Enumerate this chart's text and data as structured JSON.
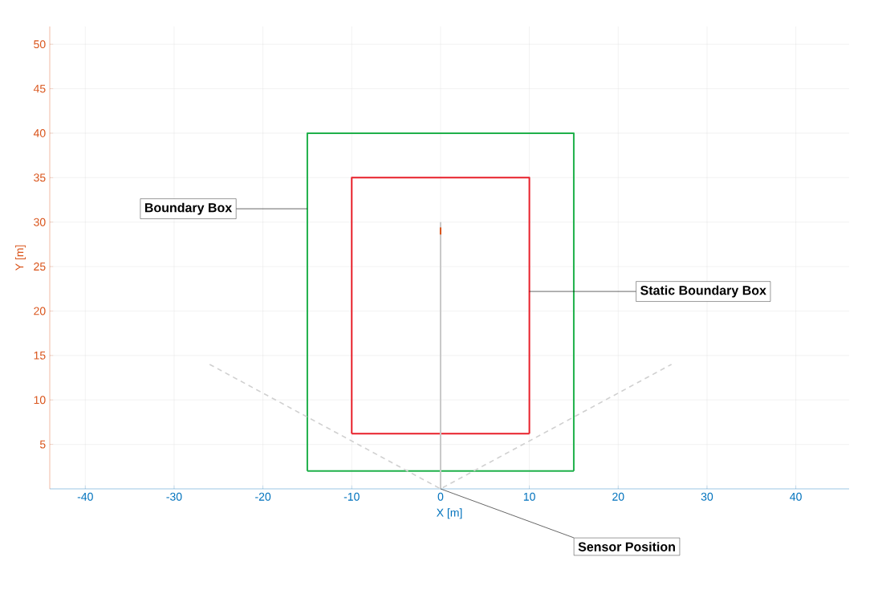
{
  "chart_data": {
    "type": "line",
    "xlabel": "X [m]",
    "ylabel": "Y [m]",
    "xlim": [
      -44,
      46
    ],
    "ylim": [
      0,
      52
    ],
    "xticks": [
      -40,
      -30,
      -20,
      -10,
      0,
      10,
      20,
      30,
      40
    ],
    "yticks": [
      5,
      10,
      15,
      20,
      25,
      30,
      35,
      40,
      45,
      50
    ],
    "grid": true,
    "marker": "none",
    "series": [
      {
        "color": "#1fb04a",
        "x": [
          -15,
          -15,
          15,
          15
        ],
        "values": [
          2,
          40,
          40,
          2
        ],
        "line_style": "solid"
      },
      {
        "color": "#e8202a",
        "x": [
          -10,
          -10,
          10,
          10
        ],
        "values": [
          6.2,
          35,
          35,
          6.2
        ],
        "line_style": "solid"
      },
      {
        "color": "#1fb04a",
        "x": [
          -15,
          15
        ],
        "values": [
          2,
          2
        ],
        "line_style": "solid"
      },
      {
        "color": "#e8202a",
        "x": [
          -10,
          10
        ],
        "values": [
          6.2,
          6.2
        ],
        "line_style": "solid"
      },
      {
        "color": "#c8c8c8",
        "x": [
          0,
          0
        ],
        "values": [
          0,
          30
        ],
        "line_style": "solid"
      },
      {
        "color": "#d95319",
        "x": [
          0,
          0
        ],
        "values": [
          28.6,
          29.4
        ],
        "line_style": "solid"
      },
      {
        "color": "#d0d0d0",
        "x": [
          -26,
          0,
          26
        ],
        "values": [
          14,
          0,
          14
        ],
        "line_style": "dashed"
      }
    ],
    "annotations": [
      {
        "text": "Boundary Box",
        "x": -15,
        "y": 31.5
      },
      {
        "text": "Static Boundary Box",
        "x": 10,
        "y": 22.2
      },
      {
        "text": "Sensor Position",
        "x": 0,
        "y": 0
      }
    ]
  }
}
